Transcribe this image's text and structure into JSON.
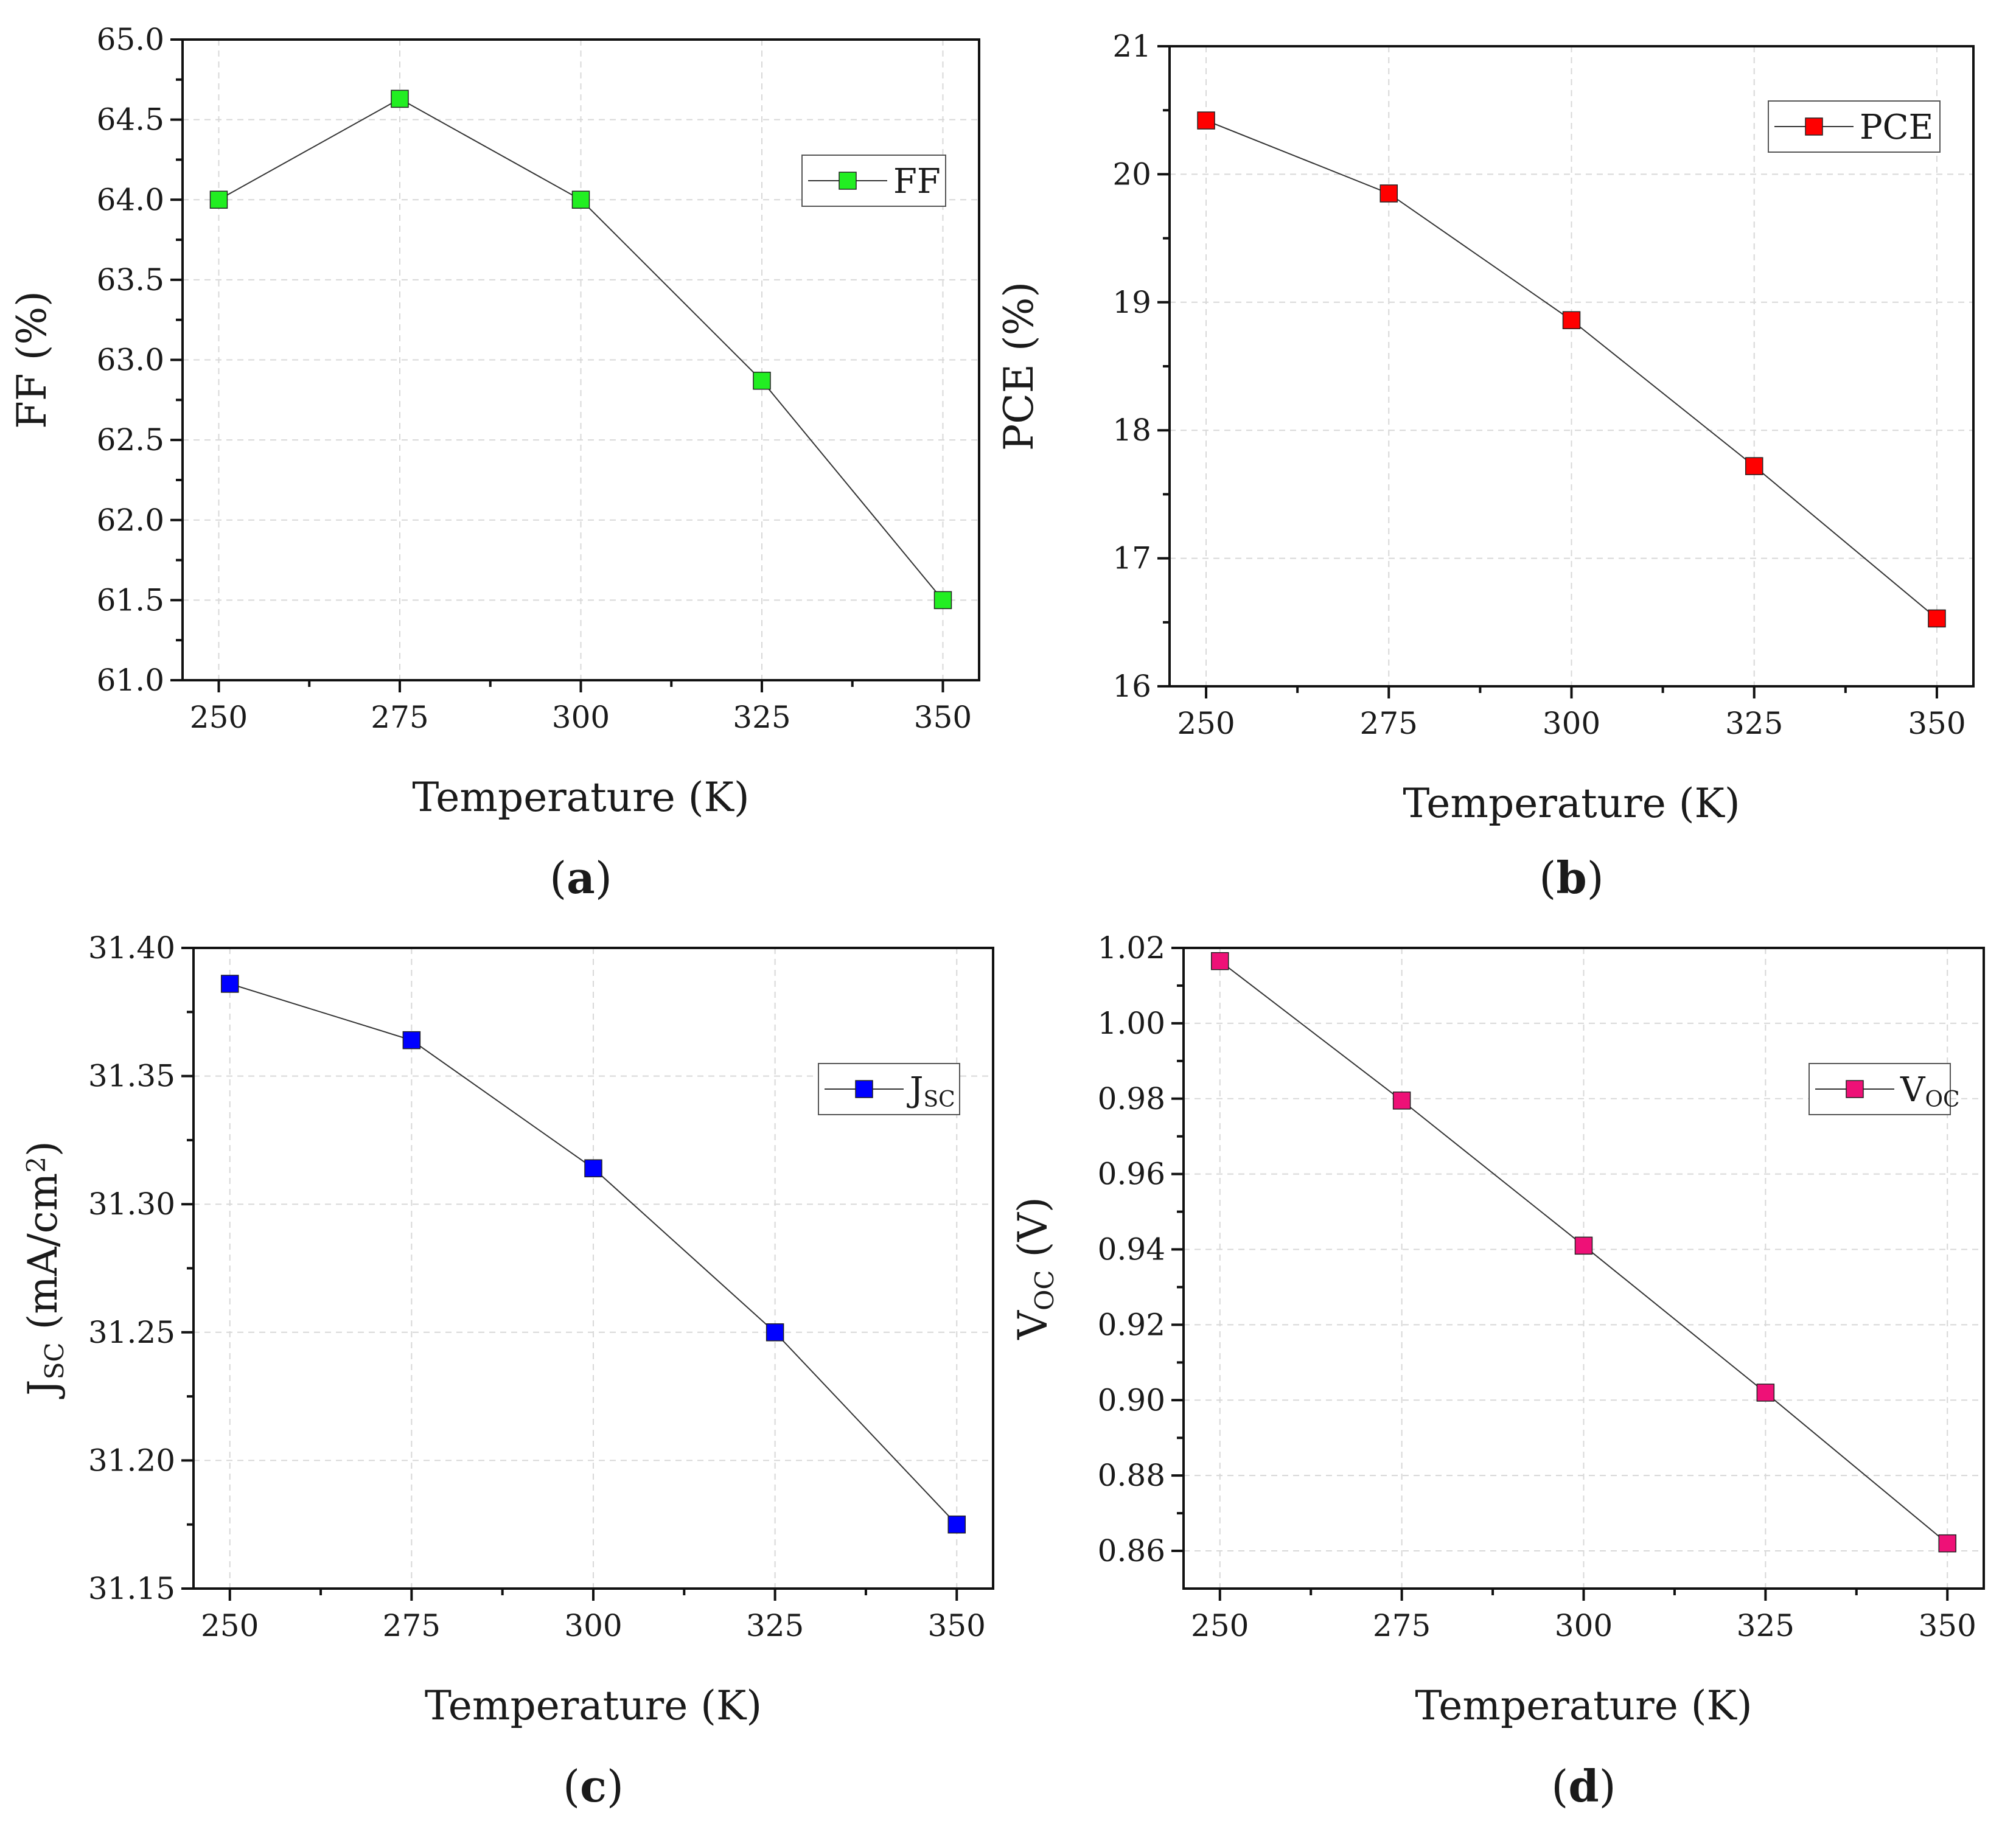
{
  "figure": {
    "panels": [
      "a",
      "b",
      "c",
      "d"
    ]
  },
  "chart_data": [
    {
      "id": "a",
      "type": "line",
      "panel_label": "a",
      "x": [
        250,
        275,
        300,
        325,
        350
      ],
      "values": [
        64.0,
        64.63,
        64.0,
        62.87,
        61.5
      ],
      "series_name": "FF",
      "series_sub": "",
      "color": "#22ee22",
      "xlabel": "Temperature (K)",
      "ylabel_main": "FF (%)",
      "ylabel_sub": "",
      "ylabel_rest": "",
      "ylabel_sup": "",
      "ylabel_end": "",
      "xlim": [
        245,
        355
      ],
      "ylim": [
        61.0,
        65.0
      ],
      "xticks": [
        250,
        275,
        300,
        325,
        350
      ],
      "yticks": [
        "61.0",
        "61.5",
        "62.0",
        "62.5",
        "63.0",
        "63.5",
        "64.0",
        "64.5",
        "65.0"
      ],
      "grid": true,
      "legend_position": "upper-right"
    },
    {
      "id": "b",
      "type": "line",
      "panel_label": "b",
      "x": [
        250,
        275,
        300,
        325,
        350
      ],
      "values": [
        20.42,
        19.85,
        18.86,
        17.72,
        16.53
      ],
      "series_name": "PCE",
      "series_sub": "",
      "color": "#ff0000",
      "xlabel": "Temperature (K)",
      "ylabel_main": "PCE (%)",
      "ylabel_sub": "",
      "ylabel_rest": "",
      "ylabel_sup": "",
      "ylabel_end": "",
      "xlim": [
        245,
        355
      ],
      "ylim": [
        16,
        21
      ],
      "xticks": [
        250,
        275,
        300,
        325,
        350
      ],
      "yticks": [
        "16",
        "17",
        "18",
        "19",
        "20",
        "21"
      ],
      "grid": true,
      "legend_position": "top-right"
    },
    {
      "id": "c",
      "type": "line",
      "panel_label": "c",
      "x": [
        250,
        275,
        300,
        325,
        350
      ],
      "values": [
        31.386,
        31.364,
        31.314,
        31.25,
        31.175
      ],
      "series_name": "J",
      "series_sub": "SC",
      "color": "#0000ff",
      "xlabel": "Temperature (K)",
      "ylabel_main": "J",
      "ylabel_sub": "SC",
      "ylabel_rest": " (mA/cm",
      "ylabel_sup": "2",
      "ylabel_end": ")",
      "xlim": [
        245,
        355
      ],
      "ylim": [
        31.15,
        31.4
      ],
      "xticks": [
        250,
        275,
        300,
        325,
        350
      ],
      "yticks": [
        "31.15",
        "31.20",
        "31.25",
        "31.30",
        "31.35",
        "31.40"
      ],
      "grid": true,
      "legend_position": "upper-right"
    },
    {
      "id": "d",
      "type": "line",
      "panel_label": "d",
      "x": [
        250,
        275,
        300,
        325,
        350
      ],
      "values": [
        1.0165,
        0.9795,
        0.941,
        0.902,
        0.862
      ],
      "series_name": "V",
      "series_sub": "OC",
      "color": "#ee1177",
      "xlabel": "Temperature (K)",
      "ylabel_main": "V",
      "ylabel_sub": "OC",
      "ylabel_rest": " (V)",
      "ylabel_sup": "",
      "ylabel_end": "",
      "xlim": [
        245,
        355
      ],
      "ylim": [
        0.85,
        1.02
      ],
      "xticks": [
        250,
        275,
        300,
        325,
        350
      ],
      "yticks": [
        "0.86",
        "0.88",
        "0.90",
        "0.92",
        "0.94",
        "0.96",
        "0.98",
        "1.00",
        "1.02"
      ],
      "grid": true,
      "legend_position": "upper-right"
    }
  ]
}
